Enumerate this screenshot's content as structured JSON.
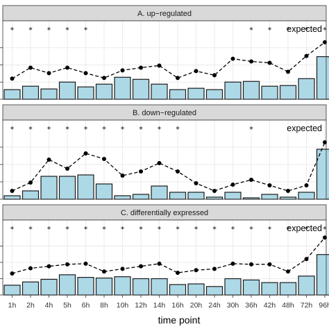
{
  "chart_data": {
    "type": "bar",
    "xlabel": "time point",
    "categories": [
      "1h",
      "2h",
      "4h",
      "5h",
      "6h",
      "8h",
      "10h",
      "12h",
      "14h",
      "16h",
      "20h",
      "24h",
      "30h",
      "36h",
      "42h",
      "48h",
      "72h",
      "96h"
    ],
    "colors": {
      "bar_fill": "#add8e6",
      "bar_stroke": "#1a1a1a",
      "line": "#000000",
      "strip_bg": "#d9d9d9",
      "grid": "#ebebeb"
    },
    "line_label": "expected",
    "panels": [
      {
        "title": "A. up−regulated",
        "ylim": [
          0,
          100
        ],
        "bars": [
          14,
          19,
          15,
          25,
          18,
          22,
          32,
          29,
          22,
          14,
          16,
          14,
          25,
          26,
          19,
          20,
          30,
          62
        ],
        "expected": [
          30,
          46,
          38,
          46,
          38,
          31,
          42,
          46,
          49,
          31,
          41,
          35,
          59,
          55,
          53,
          40,
          63,
          83
        ],
        "stars": [
          true,
          true,
          true,
          true,
          true,
          false,
          false,
          false,
          false,
          false,
          false,
          false,
          false,
          true,
          true,
          true,
          true,
          true
        ]
      },
      {
        "title": "B. down−regulated",
        "ylim": [
          0,
          100
        ],
        "bars": [
          5,
          12,
          33,
          33,
          35,
          22,
          5,
          7,
          19,
          10,
          10,
          3,
          10,
          2,
          7,
          3,
          10,
          72
        ],
        "expected": [
          12,
          24,
          57,
          44,
          66,
          58,
          34,
          40,
          52,
          40,
          23,
          12,
          21,
          28,
          20,
          12,
          20,
          82
        ],
        "stars": [
          true,
          true,
          true,
          true,
          true,
          true,
          true,
          true,
          true,
          true,
          false,
          false,
          false,
          true,
          false,
          false,
          false,
          false
        ]
      },
      {
        "title": "C. differentially expressed",
        "ylim": [
          0,
          100
        ],
        "bars": [
          15,
          20,
          24,
          31,
          27,
          26,
          28,
          25,
          25,
          16,
          17,
          13,
          25,
          23,
          19,
          19,
          29,
          62
        ],
        "expected": [
          33,
          41,
          44,
          47,
          48,
          36,
          40,
          44,
          48,
          34,
          38,
          40,
          48,
          47,
          47,
          36,
          55,
          88
        ],
        "stars": [
          true,
          true,
          true,
          true,
          true,
          true,
          true,
          true,
          true,
          true,
          true,
          true,
          true,
          true,
          true,
          true,
          true,
          true
        ]
      }
    ]
  }
}
